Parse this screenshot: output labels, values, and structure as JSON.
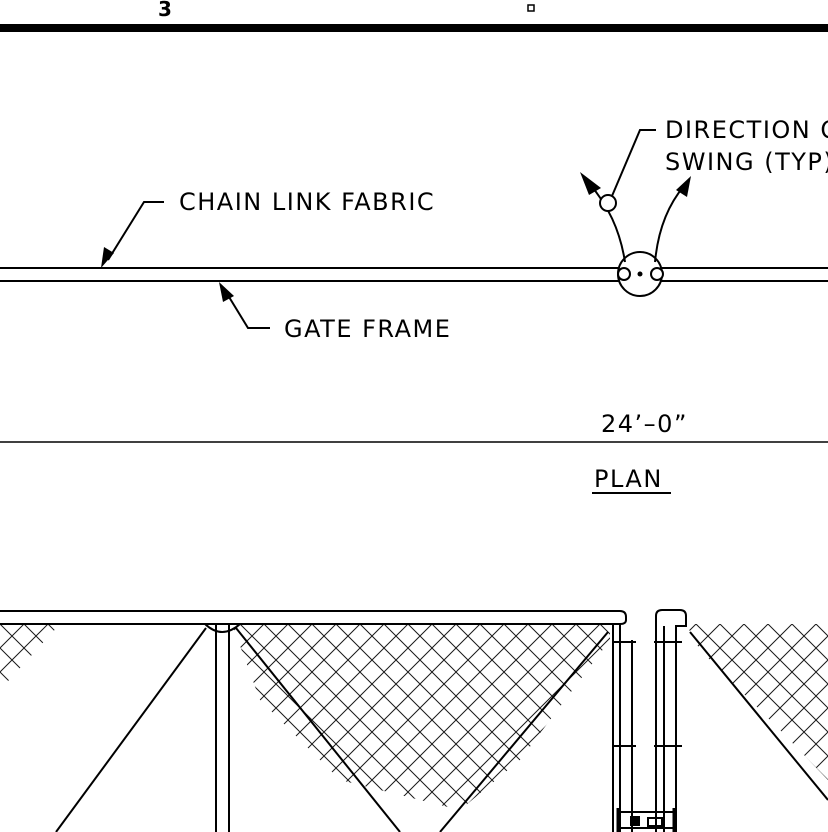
{
  "drawing": {
    "sheet_number": "3",
    "labels": {
      "chain_link_fabric": "CHAIN LINK FABRIC",
      "gate_frame": "GATE FRAME",
      "direction_line1": "DIRECTION O",
      "direction_line2": "SWING (TYP)",
      "dimension": "24’–0”",
      "plan_title": "PLAN"
    }
  }
}
